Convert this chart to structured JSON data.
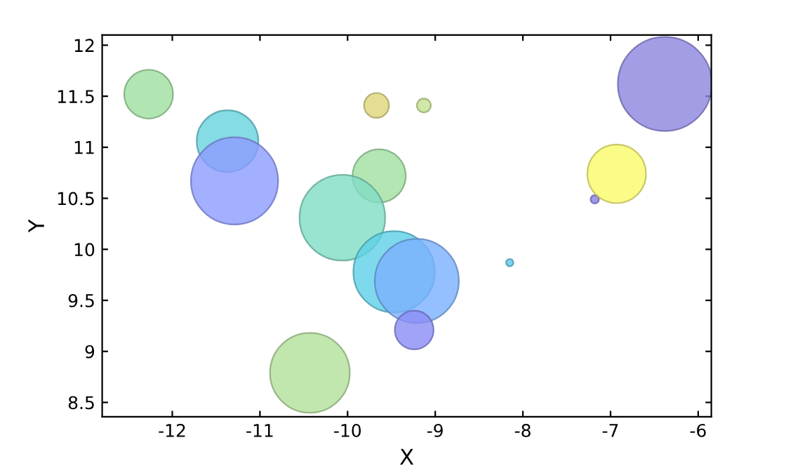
{
  "chart_data": {
    "type": "bubble",
    "xlabel": "X",
    "ylabel": "Y",
    "x": [
      -12.27,
      -11.37,
      -11.29,
      -9.67,
      -9.64,
      -10.06,
      -10.43,
      -9.47,
      -9.21,
      -9.24,
      -9.13,
      -8.15,
      -7.18,
      -6.93,
      -6.38
    ],
    "values": [
      11.52,
      11.06,
      10.67,
      11.41,
      10.72,
      10.31,
      8.79,
      9.78,
      9.69,
      9.21,
      11.41,
      9.87,
      10.49,
      10.74,
      11.62
    ],
    "sizes": [
      0.27,
      0.43,
      0.86,
      0.07,
      0.32,
      0.83,
      0.72,
      0.75,
      0.8,
      0.17,
      0.022,
      0.006,
      0.008,
      0.39,
      1
    ],
    "colors": [
      "#9ddf9d",
      "#66d3df",
      "#8c9bff",
      "#ddd67a",
      "#a0e0a0",
      "#80dcc6",
      "#b2e09a",
      "#5ccfe6",
      "#7ab0ff",
      "#8a8cf5",
      "#c6e290",
      "#5cc8ea",
      "#8a7fde",
      "#fafa6a",
      "#8c85e0"
    ],
    "xlim": [
      -12.8,
      -5.85
    ],
    "ylim": [
      8.36,
      12.1
    ],
    "xticks": [
      -12,
      -11,
      -10,
      -9,
      -8,
      -7,
      -6
    ],
    "yticks": [
      8.5,
      9,
      9.5,
      10,
      10.5,
      11,
      11.5,
      12
    ],
    "grid": false,
    "legend": false
  }
}
